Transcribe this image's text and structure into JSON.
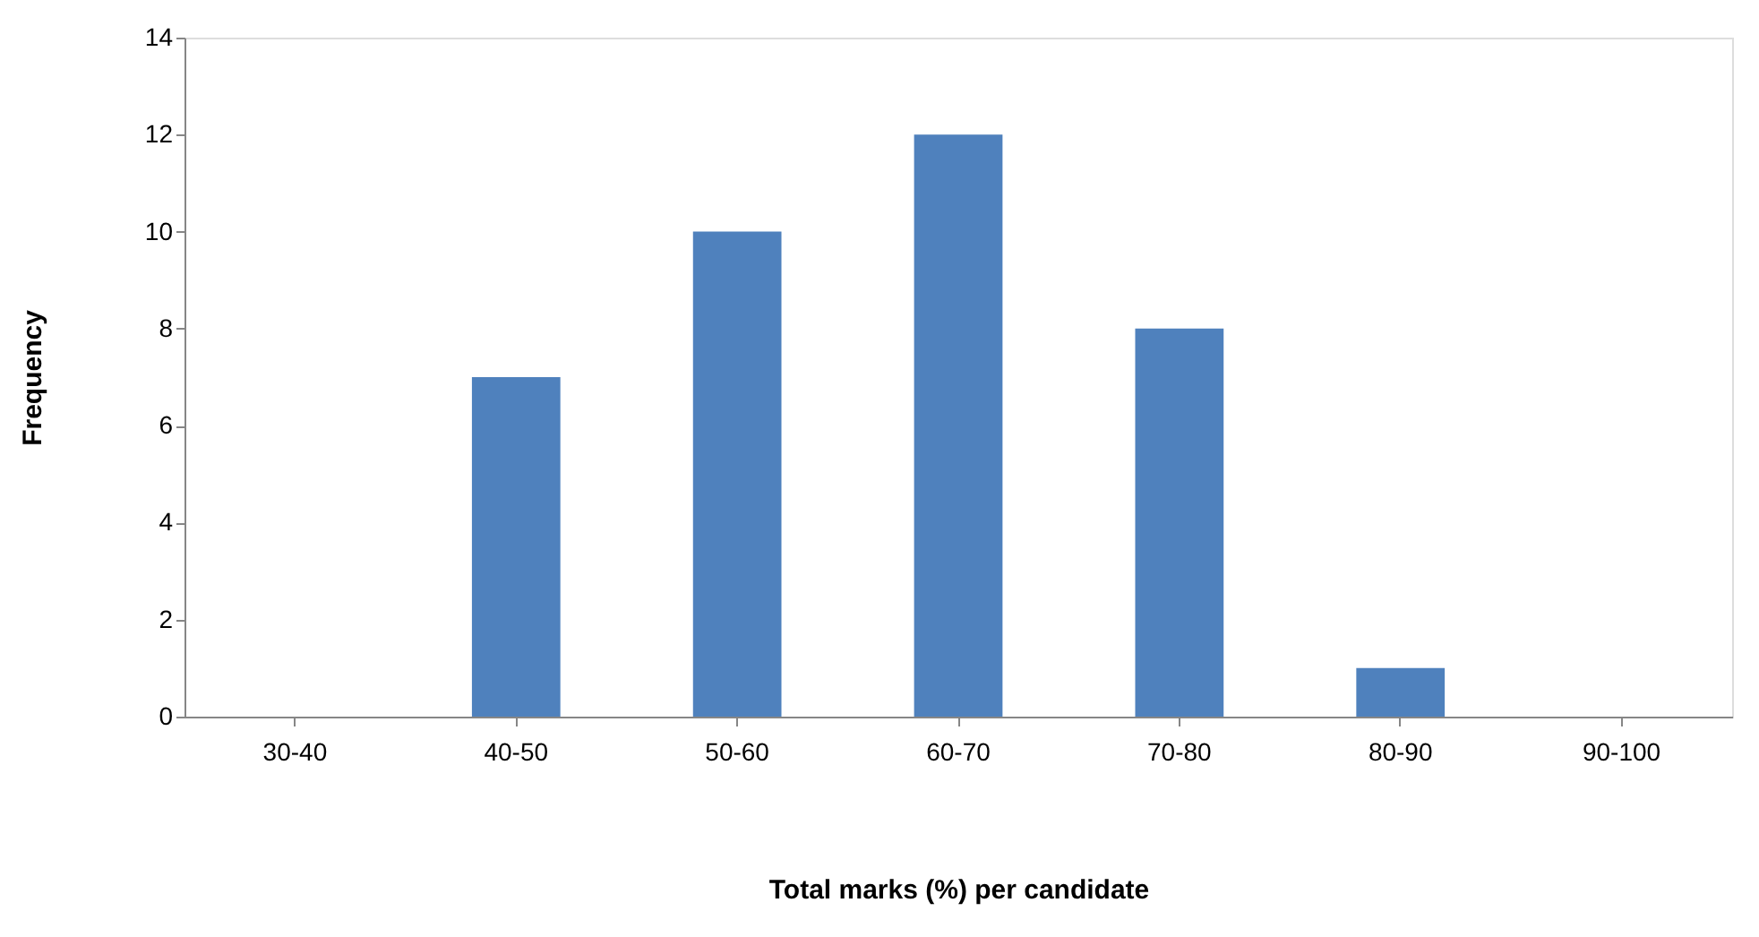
{
  "chart_data": {
    "type": "bar",
    "xlabel": "Total marks (%) per candidate",
    "ylabel": "Frequency",
    "categories": [
      "30-40",
      "40-50",
      "50-60",
      "60-70",
      "70-80",
      "80-90",
      "90-100"
    ],
    "values": [
      0,
      7,
      10,
      12,
      8,
      1,
      0
    ],
    "color": "#4f81bd",
    "ylim": [
      0,
      14
    ],
    "yticks": [
      0,
      2,
      4,
      6,
      8,
      10,
      12,
      14
    ],
    "grid": false
  }
}
